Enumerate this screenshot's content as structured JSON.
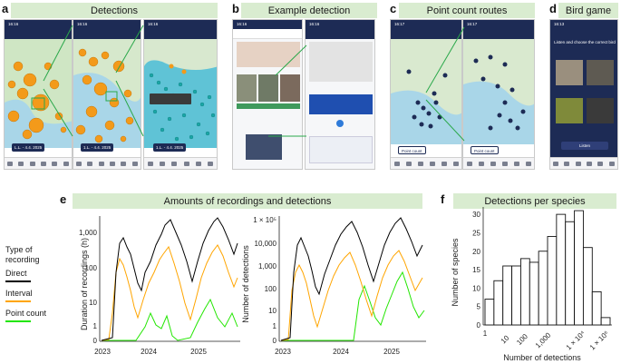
{
  "panels": {
    "a": {
      "letter": "a",
      "title": "Detections",
      "phone_times": [
        "16:16",
        "16:16",
        "16:16"
      ],
      "pills": [
        {
          "place": "L.L. - 4.4.",
          "year": "2025"
        },
        {
          "place": "1.L. - 4.4.",
          "year": "2025"
        },
        {
          "place": "1.L. - 4.4.",
          "year": "2025"
        }
      ]
    },
    "b": {
      "letter": "b",
      "title": "Example detection",
      "phone_times": [
        "16:16",
        "16:16"
      ]
    },
    "c": {
      "letter": "c",
      "title": "Point count routes",
      "phone_times": [
        "16:17",
        "16:17"
      ],
      "buttons": [
        "Point count",
        "Point count"
      ]
    },
    "d": {
      "letter": "d",
      "title": "Bird game",
      "phone_time": "16:13",
      "prompt": "Listen and choose the correct bird",
      "listen_label": "Listen"
    },
    "e": {
      "letter": "e",
      "title": "Amounts of recordings and detections"
    },
    "f": {
      "letter": "f",
      "title": "Detections per species"
    }
  },
  "legend": {
    "heading": [
      "Type of",
      "recording"
    ],
    "items": [
      {
        "label": "Direct",
        "color": "#000000"
      },
      {
        "label": "Interval",
        "color": "#ffa500"
      },
      {
        "label": "Point count",
        "color": "#22e600"
      }
    ]
  },
  "chart_data": [
    {
      "type": "line",
      "ylabel": "Duration of recordings (h)",
      "yscale": "log",
      "y_ticks": [
        "1,000",
        "100",
        "10",
        "1",
        "0"
      ],
      "x_ticks": [
        "2023",
        "2024",
        "2025"
      ],
      "series": [
        {
          "name": "Direct",
          "color": "#000000"
        },
        {
          "name": "Interval",
          "color": "#ffa500"
        },
        {
          "name": "Point count",
          "color": "#22e600"
        }
      ]
    },
    {
      "type": "line",
      "ylabel": "Number of detections",
      "yscale": "log",
      "y_ticks": [
        "1 × 10⁵",
        "10,000",
        "1,000",
        "100",
        "10",
        "1",
        "0"
      ],
      "x_ticks": [
        "2023",
        "2024",
        "2025"
      ],
      "series": [
        {
          "name": "Direct",
          "color": "#000000"
        },
        {
          "name": "Interval",
          "color": "#ffa500"
        },
        {
          "name": "Point count",
          "color": "#22e600"
        }
      ]
    },
    {
      "type": "bar",
      "xlabel": "Number of detections",
      "ylabel": "Number of species",
      "ylim": [
        0,
        32
      ],
      "y_ticks": [
        "0",
        "5",
        "10",
        "15",
        "20",
        "25",
        "30"
      ],
      "x_ticks": [
        "1",
        "10",
        "100",
        "1,000",
        "1 × 10⁴",
        "1 × 10⁶"
      ],
      "values": [
        7,
        12,
        16,
        16,
        18,
        17,
        20,
        24,
        30,
        28,
        31,
        21,
        9,
        2
      ]
    }
  ]
}
